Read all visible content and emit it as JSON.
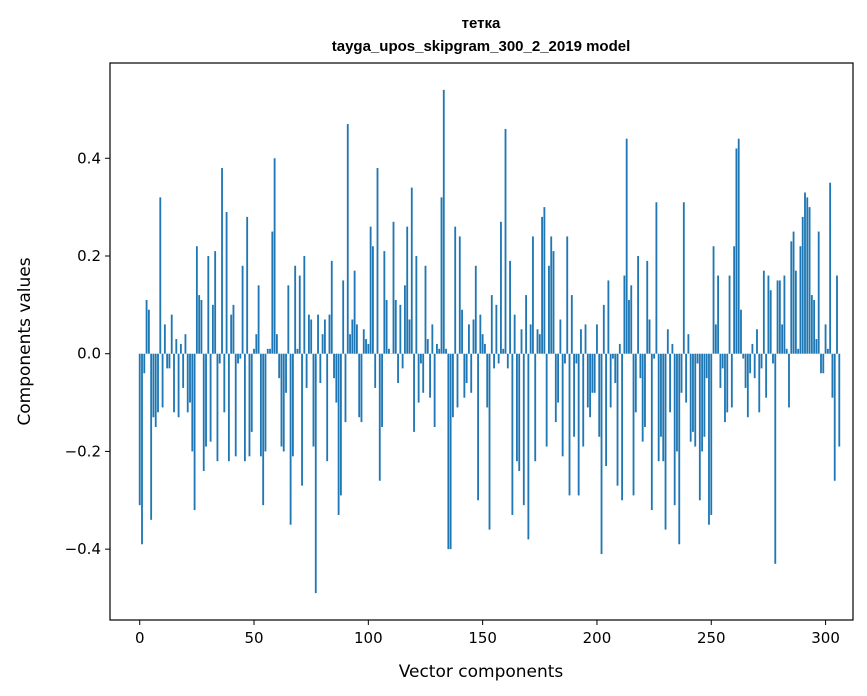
{
  "chart_data": {
    "type": "bar",
    "title": "тетка",
    "subtitle": "tayga_upos_skipgram_300_2_2019 model",
    "xlabel": "Vector components",
    "ylabel": "Components values",
    "xlim": [
      -13,
      312
    ],
    "ylim": [
      -0.545,
      0.595
    ],
    "xticks": [
      0,
      50,
      100,
      150,
      200,
      250,
      300
    ],
    "xtick_labels": [
      "0",
      "50",
      "100",
      "150",
      "200",
      "250",
      "300"
    ],
    "yticks": [
      -0.4,
      -0.2,
      0.0,
      0.2,
      0.4
    ],
    "ytick_labels": [
      "−0.4",
      "−0.2",
      "0.0",
      "0.2",
      "0.4"
    ],
    "color": "#1f77b4",
    "grid": false,
    "values": [
      -0.31,
      -0.39,
      -0.04,
      0.11,
      0.09,
      -0.34,
      -0.13,
      -0.15,
      -0.12,
      0.32,
      -0.11,
      0.06,
      -0.03,
      -0.03,
      0.08,
      -0.12,
      0.03,
      -0.13,
      0.02,
      -0.07,
      0.04,
      -0.12,
      -0.1,
      -0.2,
      -0.32,
      0.22,
      0.12,
      0.11,
      -0.24,
      -0.19,
      0.2,
      -0.18,
      0.1,
      0.21,
      -0.22,
      -0.02,
      0.38,
      -0.12,
      0.29,
      -0.22,
      0.08,
      0.1,
      -0.21,
      -0.02,
      -0.01,
      0.18,
      -0.22,
      0.28,
      -0.21,
      -0.16,
      0.01,
      0.04,
      0.14,
      -0.21,
      -0.31,
      -0.2,
      0.01,
      0.01,
      0.25,
      0.4,
      0.04,
      -0.05,
      -0.19,
      -0.2,
      -0.08,
      0.14,
      -0.35,
      -0.21,
      0.18,
      0.01,
      0.16,
      -0.27,
      0.2,
      -0.07,
      0.08,
      0.07,
      -0.19,
      -0.49,
      0.08,
      -0.06,
      0.04,
      0.07,
      -0.22,
      0.08,
      0.19,
      -0.05,
      -0.1,
      -0.33,
      -0.29,
      0.15,
      -0.14,
      0.47,
      0.04,
      0.07,
      0.17,
      0.06,
      -0.13,
      -0.14,
      0.05,
      0.03,
      0.02,
      0.26,
      0.22,
      -0.07,
      0.38,
      -0.26,
      -0.15,
      0.21,
      0.11,
      0.01,
      0.0,
      0.27,
      0.11,
      -0.06,
      0.1,
      -0.03,
      0.14,
      0.26,
      0.07,
      0.34,
      -0.16,
      0.2,
      -0.1,
      -0.02,
      -0.08,
      0.18,
      0.03,
      -0.09,
      0.06,
      -0.15,
      0.02,
      0.01,
      0.32,
      0.54,
      0.01,
      -0.4,
      -0.4,
      -0.13,
      0.26,
      -0.11,
      0.24,
      0.09,
      -0.09,
      -0.06,
      0.06,
      -0.08,
      0.07,
      0.18,
      -0.3,
      0.08,
      0.04,
      0.02,
      -0.11,
      -0.36,
      0.12,
      -0.03,
      0.1,
      -0.02,
      0.27,
      0.01,
      0.46,
      -0.03,
      0.19,
      -0.33,
      0.08,
      -0.22,
      -0.24,
      0.05,
      -0.31,
      0.12,
      -0.38,
      0.06,
      0.24,
      -0.22,
      0.05,
      0.04,
      0.28,
      0.3,
      -0.19,
      0.18,
      0.24,
      0.21,
      -0.14,
      -0.1,
      0.07,
      -0.21,
      -0.02,
      0.24,
      -0.29,
      0.12,
      -0.17,
      -0.02,
      -0.29,
      0.05,
      -0.19,
      0.06,
      -0.11,
      -0.13,
      -0.08,
      -0.08,
      0.06,
      -0.17,
      -0.41,
      0.1,
      -0.23,
      0.15,
      -0.11,
      -0.01,
      -0.06,
      -0.27,
      0.02,
      -0.3,
      0.16,
      0.44,
      0.11,
      0.14,
      -0.29,
      -0.12,
      0.2,
      -0.05,
      -0.18,
      -0.15,
      0.19,
      0.07,
      -0.32,
      -0.01,
      0.31,
      -0.22,
      -0.17,
      -0.22,
      -0.36,
      0.05,
      -0.12,
      0.02,
      -0.31,
      -0.2,
      -0.39,
      -0.08,
      0.31,
      -0.1,
      0.04,
      -0.18,
      -0.16,
      -0.19,
      -0.02,
      -0.3,
      -0.2,
      -0.17,
      -0.05,
      -0.35,
      -0.33,
      0.22,
      0.06,
      0.16,
      -0.07,
      -0.03,
      -0.14,
      -0.12,
      0.16,
      -0.11,
      0.22,
      0.42,
      0.44,
      0.09,
      -0.01,
      -0.07,
      -0.13,
      -0.04,
      0.02,
      -0.05,
      0.05,
      -0.12,
      -0.03,
      0.17,
      -0.09,
      0.16,
      0.13,
      -0.02,
      -0.43,
      0.15,
      0.15,
      0.06,
      0.16,
      0.01,
      -0.11,
      0.23,
      0.25,
      0.17,
      0.01,
      0.22,
      0.28,
      0.33,
      0.32,
      0.3,
      0.12,
      0.11,
      0.03,
      0.25,
      -0.04,
      -0.04,
      0.06,
      0.01,
      0.35,
      -0.09,
      -0.26,
      0.16,
      -0.19
    ]
  }
}
